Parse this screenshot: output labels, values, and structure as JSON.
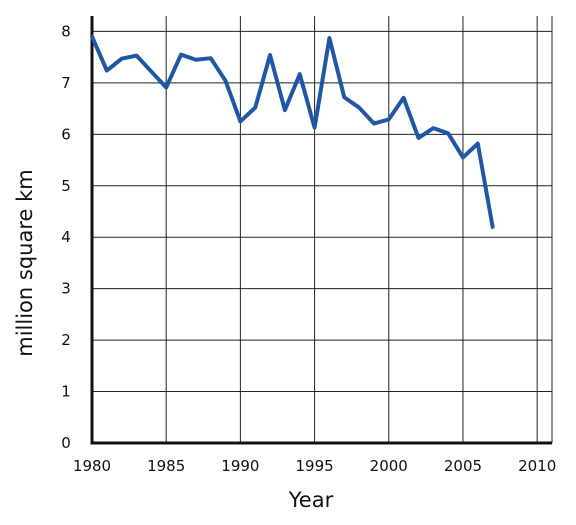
{
  "chart_data": {
    "type": "line",
    "title": "",
    "xlabel": "Year",
    "ylabel": "million square km",
    "xlim": [
      1980,
      2011
    ],
    "ylim": [
      0,
      8.3
    ],
    "x_ticks": [
      1980,
      1985,
      1990,
      1995,
      2000,
      2005,
      2010
    ],
    "y_ticks": [
      0,
      1,
      2,
      3,
      4,
      5,
      6,
      7,
      8
    ],
    "grid": true,
    "legend": "none",
    "series_color": "#1f57a4",
    "series": [
      {
        "x": [
          1980,
          1981,
          1982,
          1983,
          1984,
          1985,
          1986,
          1987,
          1988,
          1989,
          1990,
          1991,
          1992,
          1993,
          1994,
          1995,
          1996,
          1997,
          1998,
          1999,
          2000,
          2001,
          2002,
          2003,
          2004,
          2005,
          2006,
          2007
        ],
        "values": [
          7.9,
          7.24,
          7.47,
          7.53,
          7.22,
          6.91,
          7.55,
          7.45,
          7.48,
          7.04,
          6.25,
          6.52,
          7.54,
          6.47,
          7.17,
          6.13,
          7.87,
          6.72,
          6.52,
          6.21,
          6.29,
          6.71,
          5.93,
          6.12,
          6.02,
          5.55,
          5.82,
          4.2
        ]
      }
    ]
  }
}
